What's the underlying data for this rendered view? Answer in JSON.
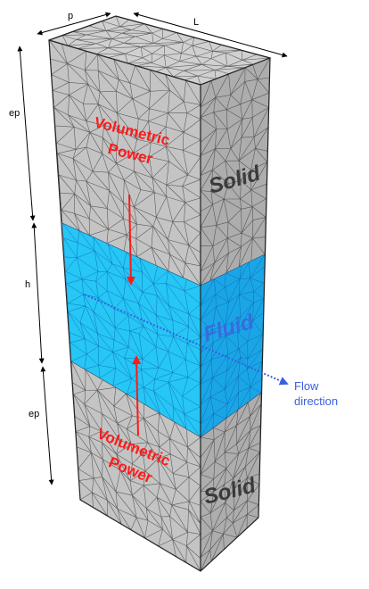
{
  "dimensions": {
    "p": "p",
    "L": "L",
    "ep_top": "ep",
    "h": "h",
    "ep_bottom": "ep"
  },
  "labels": {
    "power_top_line1": "Volumetric",
    "power_top_line2": "Power",
    "power_bottom_line1": "Volumetric",
    "power_bottom_line2": "Power",
    "solid_top": "Solid",
    "solid_bottom": "Solid",
    "fluid": "Fluid",
    "flow_line1": "Flow",
    "flow_line2": "direction"
  },
  "colors": {
    "solid_front": "#c4c4c4",
    "solid_side": "#adadad",
    "solid_top": "#d0d0d0",
    "fluid_front": "#26c6f5",
    "fluid_side": "#1aa6e6",
    "mesh_dark": "#3a3a3a",
    "mesh_fluid": "#0a5aa8",
    "power_red": "#ff1a1a",
    "flow_blue": "#3a5fe0",
    "solid_text": "#3a3a3a",
    "fluid_text": "#3a6ae0"
  }
}
